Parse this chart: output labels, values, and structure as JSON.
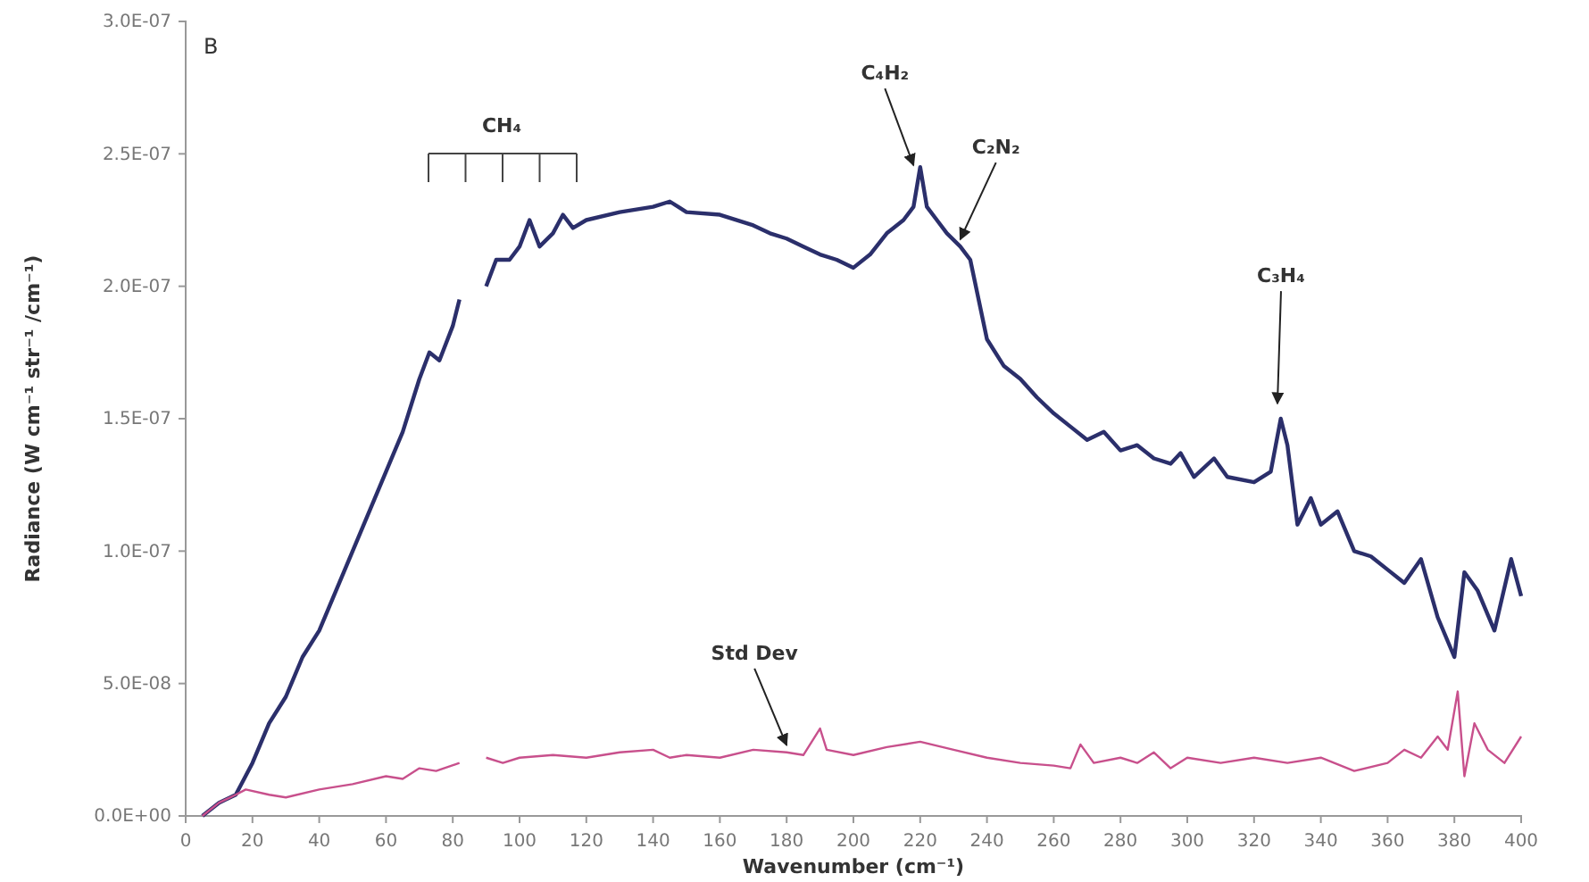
{
  "chart_data": {
    "type": "line",
    "xlabel": "Wavenumber (cm⁻¹)",
    "ylabel": "Radiance (W cm⁻¹ str⁻¹ /cm⁻¹)",
    "xlim": [
      0,
      400
    ],
    "xticks": [
      0,
      20,
      40,
      60,
      80,
      100,
      120,
      140,
      160,
      180,
      200,
      220,
      240,
      260,
      280,
      300,
      320,
      340,
      360,
      380,
      400
    ],
    "ylim": [
      0,
      3e-07
    ],
    "yticks": [
      {
        "value": 0,
        "label": "0.0E+00"
      },
      {
        "value": 5e-08,
        "label": "5.0E-08"
      },
      {
        "value": 1e-07,
        "label": "1.0E-07"
      },
      {
        "value": 1.5e-07,
        "label": "1.5E-07"
      },
      {
        "value": 2e-07,
        "label": "2.0E-07"
      },
      {
        "value": 2.5e-07,
        "label": "2.5E-07"
      },
      {
        "value": 3e-07,
        "label": "3.0E-07"
      }
    ],
    "grid": false,
    "series": [
      {
        "color": "#2b2f6b",
        "x": [
          5,
          10,
          15,
          20,
          25,
          30,
          35,
          40,
          45,
          50,
          55,
          60,
          65,
          70,
          73,
          76,
          80,
          82,
          86,
          90,
          93,
          97,
          100,
          103,
          106,
          110,
          113,
          116,
          120,
          130,
          140,
          145,
          150,
          160,
          170,
          175,
          180,
          185,
          190,
          195,
          200,
          205,
          210,
          215,
          218,
          220,
          222,
          225,
          228,
          232,
          235,
          240,
          245,
          250,
          255,
          260,
          265,
          270,
          275,
          280,
          285,
          290,
          295,
          298,
          302,
          308,
          312,
          320,
          325,
          328,
          330,
          333,
          337,
          340,
          345,
          350,
          355,
          360,
          365,
          370,
          375,
          380,
          383,
          387,
          392,
          397,
          400
        ],
        "values": [
          0,
          5e-09,
          8e-09,
          2e-08,
          3.5e-08,
          4.5e-08,
          6e-08,
          7e-08,
          8.5e-08,
          1e-07,
          1.15e-07,
          1.3e-07,
          1.45e-07,
          1.65e-07,
          1.75e-07,
          1.72e-07,
          1.85e-07,
          1.95e-07,
          null,
          2e-07,
          2.1e-07,
          2.1e-07,
          2.15e-07,
          2.25e-07,
          2.15e-07,
          2.2e-07,
          2.27e-07,
          2.22e-07,
          2.25e-07,
          2.28e-07,
          2.3e-07,
          2.32e-07,
          2.28e-07,
          2.27e-07,
          2.23e-07,
          2.2e-07,
          2.18e-07,
          2.15e-07,
          2.12e-07,
          2.1e-07,
          2.07e-07,
          2.12e-07,
          2.2e-07,
          2.25e-07,
          2.3e-07,
          2.45e-07,
          2.3e-07,
          2.25e-07,
          2.2e-07,
          2.15e-07,
          2.1e-07,
          1.8e-07,
          1.7e-07,
          1.65e-07,
          1.58e-07,
          1.52e-07,
          1.47e-07,
          1.42e-07,
          1.45e-07,
          1.38e-07,
          1.4e-07,
          1.35e-07,
          1.33e-07,
          1.37e-07,
          1.28e-07,
          1.35e-07,
          1.28e-07,
          1.26e-07,
          1.3e-07,
          1.5e-07,
          1.4e-07,
          1.1e-07,
          1.2e-07,
          1.1e-07,
          1.15e-07,
          1e-07,
          9.8e-08,
          9.3e-08,
          8.8e-08,
          9.7e-08,
          7.5e-08,
          6e-08,
          9.2e-08,
          8.5e-08,
          7e-08,
          9.7e-08,
          8.3e-08
        ]
      },
      {
        "color": "#c8508c",
        "x": [
          5,
          10,
          15,
          18,
          25,
          30,
          40,
          50,
          60,
          65,
          70,
          75,
          82,
          86,
          90,
          95,
          100,
          110,
          120,
          130,
          140,
          145,
          150,
          160,
          170,
          180,
          185,
          190,
          192,
          200,
          210,
          220,
          230,
          240,
          250,
          260,
          265,
          268,
          272,
          280,
          285,
          290,
          295,
          300,
          310,
          320,
          330,
          340,
          350,
          360,
          365,
          370,
          375,
          378,
          381,
          383,
          386,
          390,
          395,
          400
        ],
        "values": [
          0,
          5e-09,
          8e-09,
          1e-08,
          8e-09,
          7e-09,
          1e-08,
          1.2e-08,
          1.5e-08,
          1.4e-08,
          1.8e-08,
          1.7e-08,
          2e-08,
          null,
          2.2e-08,
          2e-08,
          2.2e-08,
          2.3e-08,
          2.2e-08,
          2.4e-08,
          2.5e-08,
          2.2e-08,
          2.3e-08,
          2.2e-08,
          2.5e-08,
          2.4e-08,
          2.3e-08,
          3.3e-08,
          2.5e-08,
          2.3e-08,
          2.6e-08,
          2.8e-08,
          2.5e-08,
          2.2e-08,
          2e-08,
          1.9e-08,
          1.8e-08,
          2.7e-08,
          2e-08,
          2.2e-08,
          2e-08,
          2.4e-08,
          1.8e-08,
          2.2e-08,
          2e-08,
          2.2e-08,
          2e-08,
          2.2e-08,
          1.7e-08,
          2e-08,
          2.5e-08,
          2.2e-08,
          3e-08,
          2.5e-08,
          4.7e-08,
          1.5e-08,
          3.5e-08,
          2.5e-08,
          2e-08,
          3e-08
        ]
      }
    ],
    "annotations": [
      "B",
      "CH₄",
      {
        "text": "C₄H₂",
        "x": 218,
        "y": 2.43e-07
      },
      {
        "text": "C₂N₂",
        "x": 232,
        "y": 2.15e-07
      },
      {
        "text": "C₃H₄",
        "x": 327,
        "y": 1.53e-07
      },
      {
        "text": "Std Dev",
        "x": 180,
        "y": 2.4e-08
      }
    ]
  }
}
